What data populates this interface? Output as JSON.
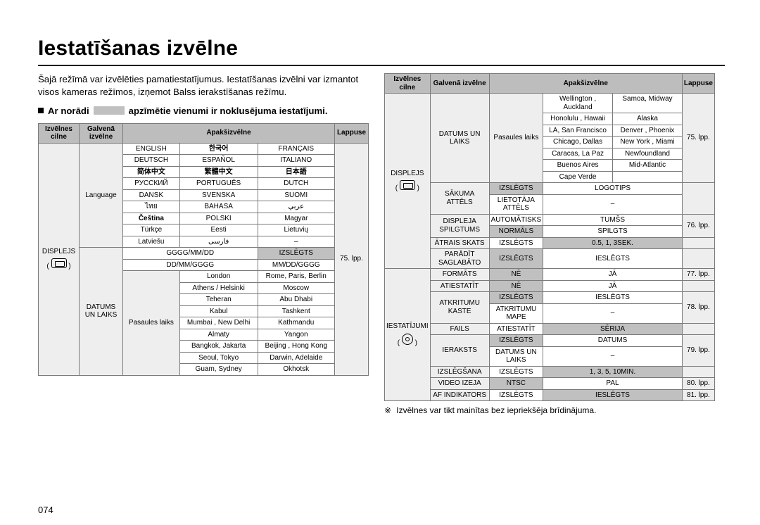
{
  "colors": {
    "page_bg": "#ffffff",
    "rule": "#000000",
    "header_bg": "#bdbdbd",
    "tab_bg": "#eeeeee",
    "sub_bg": "#c1c0c1",
    "border": "#7a7a7a"
  },
  "title": "Iestatīšanas izvēlne",
  "intro": "Šajā režīmā var izvēlēties pamatiestatījumus. Iestatīšanas izvēlni var izmantot visos kameras režīmos, izņemot Balss ierakstīšanas režīmu.",
  "note_prefix": "Ar norādi",
  "note_suffix": "apzīmētie vienumi ir noklusējuma iestatījumi.",
  "page_number": "074",
  "left": {
    "headers": {
      "tab": "Izvēlnes cilne",
      "main": "Galvenā izvēlne",
      "sub": "Apakšizvēlne",
      "page": "Lappuse"
    },
    "tab_label": "DISPLEJS",
    "tab_icon": "display-icon",
    "main_language": "Language",
    "lang_rows": [
      [
        "ENGLISH",
        "한국어",
        "FRANÇAIS"
      ],
      [
        "DEUTSCH",
        "ESPAÑOL",
        "ITALIANO"
      ],
      [
        "简体中文",
        "繁體中文",
        "日本語"
      ],
      [
        "РУССКИЙ",
        "PORTUGUÊS",
        "DUTCH"
      ],
      [
        "DANSK",
        "SVENSKA",
        "SUOMI"
      ],
      [
        "ไทย",
        "BAHASA",
        "عربي"
      ],
      [
        "Čeština",
        "POLSKI",
        "Magyar"
      ],
      [
        "Türkçe",
        "Eesti",
        "Lietuvių"
      ],
      [
        "Latviešu",
        "فارسی",
        "–"
      ]
    ],
    "lang_bold": [
      [
        0,
        1
      ],
      [
        2,
        0
      ],
      [
        2,
        1
      ],
      [
        2,
        2
      ],
      [
        6,
        0
      ]
    ],
    "lang_page": "75. lpp.",
    "date_fmt_rows": [
      [
        "GGGG/MM/DD",
        "IZSLĒGTS"
      ],
      [
        "DD/MM/GGGG",
        "MM/DD/GGGG"
      ]
    ],
    "date_fmt_sub": [
      [
        0,
        1
      ]
    ],
    "main_datetime": "DATUMS UN LAIKS",
    "worldtime_label": "Pasaules laiks",
    "city_rows": [
      [
        "London",
        "Rome, Paris, Berlin"
      ],
      [
        "Athens / Helsinki",
        "Moscow"
      ],
      [
        "Teheran",
        "Abu Dhabi"
      ],
      [
        "Kabul",
        "Tashkent"
      ],
      [
        "Mumbai , New Delhi",
        "Kathmandu"
      ],
      [
        "Almaty",
        "Yangon"
      ],
      [
        "Bangkok, Jakarta",
        "Beijing , Hong Kong"
      ],
      [
        "Seoul, Tokyo",
        "Darwin, Adelaide"
      ],
      [
        "Guam, Sydney",
        "Okhotsk"
      ]
    ]
  },
  "right": {
    "headers": {
      "tab": "Izvēlnes cilne",
      "main": "Galvenā izvēlne",
      "sub": "Apakšizvēlne",
      "page": "Lappuse"
    },
    "tab1_label": "DISPLEJS",
    "tab1_icon": "display-icon",
    "tab2_label": "IESTATĪJUMI",
    "tab2_icon": "gear-icon",
    "groups": [
      {
        "main": "DATUMS UN LAIKS",
        "sub_label": "Pasaules laiks",
        "page": "75. lpp.",
        "city_rows": [
          [
            "Wellington , Auckland",
            "Samoa, Midway"
          ],
          [
            "Honolulu , Hawaii",
            "Alaska"
          ],
          [
            "LA, San Francisco",
            "Denver , Phoenix"
          ],
          [
            "Chicago, Dallas",
            "New York , Miami"
          ],
          [
            "Caracas, La Paz",
            "Newfoundland"
          ],
          [
            "Buenos Aires",
            "Mid-Atlantic"
          ],
          [
            "Cape Verde",
            ""
          ]
        ]
      },
      {
        "main": "SĀKUMA ATTĒLS",
        "rows": [
          [
            "IZSLĒGTS",
            "LOGOTIPS"
          ],
          [
            "LIETOTĀJA ATTĒLS",
            "–"
          ]
        ],
        "sub": [
          [
            0,
            0
          ]
        ],
        "page": ""
      },
      {
        "main": "DISPLEJA SPILGTUMS",
        "rows": [
          [
            "AUTOMĀTISKS",
            "TUMŠS"
          ],
          [
            "NORMĀLS",
            "SPILGTS"
          ]
        ],
        "sub": [
          [
            1,
            0
          ]
        ],
        "page": "76. lpp."
      },
      {
        "main": "ĀTRAIS SKATS",
        "rows": [
          [
            "IZSLĒGTS",
            "0.5, 1, 3SEK."
          ]
        ],
        "sub": [
          [
            0,
            1
          ]
        ],
        "page": ""
      },
      {
        "main": "PARĀDĪT SAGLABĀTO",
        "rows": [
          [
            "IZSLĒGTS",
            "IESLĒGTS"
          ]
        ],
        "sub": [
          [
            0,
            0
          ]
        ],
        "page": ""
      },
      {
        "main": "FORMĀTS",
        "rows": [
          [
            "NĒ",
            "JĀ"
          ]
        ],
        "sub": [
          [
            0,
            0
          ]
        ],
        "page": "77. lpp."
      },
      {
        "main": "ATIESTATĪT",
        "rows": [
          [
            "NĒ",
            "JĀ"
          ]
        ],
        "sub": [
          [
            0,
            0
          ]
        ],
        "page": ""
      },
      {
        "main": "ATKRITUMU KASTE",
        "rows": [
          [
            "IZSLĒGTS",
            "IESLĒGTS"
          ],
          [
            "ATKRITUMU MAPE",
            "–"
          ]
        ],
        "sub": [
          [
            0,
            0
          ]
        ],
        "page": "78. lpp."
      },
      {
        "main": "FAILS",
        "rows": [
          [
            "ATIESTATĪT",
            "SĒRIJA"
          ]
        ],
        "sub": [
          [
            0,
            1
          ]
        ],
        "page": ""
      },
      {
        "main": "IERAKSTS",
        "rows": [
          [
            "IZSLĒGTS",
            "DATUMS"
          ],
          [
            "DATUMS UN LAIKS",
            "–"
          ]
        ],
        "sub": [
          [
            0,
            0
          ]
        ],
        "page": "79. lpp."
      },
      {
        "main": "IZSLĒGŠANA",
        "rows": [
          [
            "IZSLĒGTS",
            "1, 3, 5, 10MIN."
          ]
        ],
        "sub": [
          [
            0,
            1
          ]
        ],
        "page": ""
      },
      {
        "main": "VIDEO IZEJA",
        "rows": [
          [
            "NTSC",
            "PAL"
          ]
        ],
        "sub": [
          [
            0,
            0
          ]
        ],
        "page": "80. lpp."
      },
      {
        "main": "AF INDIKATORS",
        "rows": [
          [
            "IZSLĒGTS",
            "IESLĒGTS"
          ]
        ],
        "sub": [
          [
            0,
            1
          ]
        ],
        "page": "81. lpp."
      }
    ],
    "footnote": "Izvēlnes var tikt mainītas bez iepriekšēja brīdinājuma."
  }
}
